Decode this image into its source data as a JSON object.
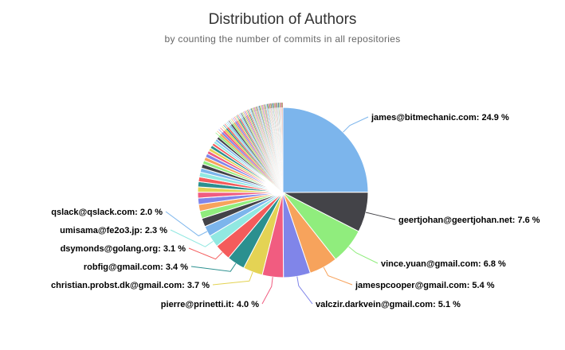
{
  "chart_data": {
    "type": "pie",
    "title": "Distribution of Authors",
    "subtitle": "by counting the number of commits in all repositories",
    "labeled_slices": [
      {
        "name": "james@bitmechanic.com",
        "value": 24.9,
        "label": "james@bitmechanic.com: 24.9 %",
        "color": "#7cb5ec"
      },
      {
        "name": "geertjohan@geertjohan.net",
        "value": 7.6,
        "label": "geertjohan@geertjohan.net: 7.6 %",
        "color": "#434348"
      },
      {
        "name": "vince.yuan@gmail.com",
        "value": 6.8,
        "label": "vince.yuan@gmail.com: 6.8 %",
        "color": "#90ed7d"
      },
      {
        "name": "jamespcooper@gmail.com",
        "value": 5.4,
        "label": "jamespcooper@gmail.com: 5.4 %",
        "color": "#f7a35c"
      },
      {
        "name": "valczir.darkvein@gmail.com",
        "value": 5.1,
        "label": "valczir.darkvein@gmail.com: 5.1 %",
        "color": "#8085e9"
      },
      {
        "name": "pierre@prinetti.it",
        "value": 4.0,
        "label": "pierre@prinetti.it: 4.0 %",
        "color": "#f15c80"
      },
      {
        "name": "christian.probst.dk@gmail.com",
        "value": 3.7,
        "label": "christian.probst.dk@gmail.com: 3.7 %",
        "color": "#e4d354"
      },
      {
        "name": "robfig@gmail.com",
        "value": 3.4,
        "label": "robfig@gmail.com: 3.4 %",
        "color": "#2b908f"
      },
      {
        "name": "dsymonds@golang.org",
        "value": 3.1,
        "label": "dsymonds@golang.org: 3.1 %",
        "color": "#f45b5b"
      },
      {
        "name": "umisama@fe2o3.jp",
        "value": 2.3,
        "label": "umisama@fe2o3.jp: 2.3 %",
        "color": "#91e8e1"
      },
      {
        "name": "qslack@qslack.com",
        "value": 2.0,
        "label": "qslack@qslack.com: 2.0 %",
        "color": "#7cb5ec"
      }
    ],
    "unlabeled_slices": [
      1.6,
      1.4,
      1.3,
      1.2,
      1.1,
      1.0,
      1.0,
      0.9,
      0.9,
      0.8,
      0.8,
      0.7,
      0.7,
      0.7,
      0.6,
      0.6,
      0.6,
      0.5,
      0.5,
      0.5,
      0.5,
      0.4,
      0.4,
      0.4,
      0.4,
      0.4,
      0.3,
      0.3,
      0.3,
      0.3,
      0.3,
      0.3,
      0.3,
      0.3,
      0.25,
      0.25,
      0.25,
      0.25,
      0.25,
      0.2,
      0.2,
      0.2,
      0.2,
      0.2,
      0.2,
      0.2,
      0.2,
      0.2,
      0.2,
      0.15,
      0.15,
      0.15,
      0.15,
      0.15,
      0.15,
      0.15,
      0.15,
      0.15,
      0.15,
      0.15,
      0.15,
      0.15,
      0.15,
      0.15,
      0.15,
      0.15,
      0.15,
      0.15,
      0.15,
      0.15,
      0.1,
      0.1,
      0.1,
      0.1,
      0.1,
      0.1,
      0.1,
      0.1,
      0.1,
      0.1,
      0.1,
      0.1,
      0.1,
      0.1,
      0.1,
      0.1,
      0.1,
      0.1,
      0.1,
      0.1,
      0.1,
      0.1,
      0.1,
      0.1,
      0.1,
      0.1,
      0.1,
      0.1
    ],
    "palette": [
      "#7cb5ec",
      "#434348",
      "#90ed7d",
      "#f7a35c",
      "#8085e9",
      "#f15c80",
      "#e4d354",
      "#2b908f",
      "#f45b5b",
      "#91e8e1"
    ]
  }
}
